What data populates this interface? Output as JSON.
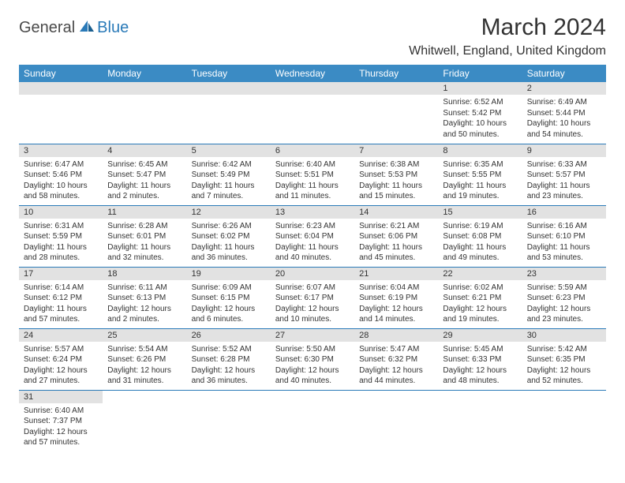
{
  "logo": {
    "dark": "General",
    "blue": "Blue"
  },
  "title": "March 2024",
  "location": "Whitwell, England, United Kingdom",
  "colors": {
    "header_bg": "#3b8bc4",
    "accent": "#2a7ab8",
    "daynum_bg": "#e2e2e2",
    "text": "#333333"
  },
  "day_headers": [
    "Sunday",
    "Monday",
    "Tuesday",
    "Wednesday",
    "Thursday",
    "Friday",
    "Saturday"
  ],
  "weeks": [
    [
      null,
      null,
      null,
      null,
      null,
      {
        "n": "1",
        "sr": "6:52 AM",
        "ss": "5:42 PM",
        "dl": "10 hours and 50 minutes."
      },
      {
        "n": "2",
        "sr": "6:49 AM",
        "ss": "5:44 PM",
        "dl": "10 hours and 54 minutes."
      }
    ],
    [
      {
        "n": "3",
        "sr": "6:47 AM",
        "ss": "5:46 PM",
        "dl": "10 hours and 58 minutes."
      },
      {
        "n": "4",
        "sr": "6:45 AM",
        "ss": "5:47 PM",
        "dl": "11 hours and 2 minutes."
      },
      {
        "n": "5",
        "sr": "6:42 AM",
        "ss": "5:49 PM",
        "dl": "11 hours and 7 minutes."
      },
      {
        "n": "6",
        "sr": "6:40 AM",
        "ss": "5:51 PM",
        "dl": "11 hours and 11 minutes."
      },
      {
        "n": "7",
        "sr": "6:38 AM",
        "ss": "5:53 PM",
        "dl": "11 hours and 15 minutes."
      },
      {
        "n": "8",
        "sr": "6:35 AM",
        "ss": "5:55 PM",
        "dl": "11 hours and 19 minutes."
      },
      {
        "n": "9",
        "sr": "6:33 AM",
        "ss": "5:57 PM",
        "dl": "11 hours and 23 minutes."
      }
    ],
    [
      {
        "n": "10",
        "sr": "6:31 AM",
        "ss": "5:59 PM",
        "dl": "11 hours and 28 minutes."
      },
      {
        "n": "11",
        "sr": "6:28 AM",
        "ss": "6:01 PM",
        "dl": "11 hours and 32 minutes."
      },
      {
        "n": "12",
        "sr": "6:26 AM",
        "ss": "6:02 PM",
        "dl": "11 hours and 36 minutes."
      },
      {
        "n": "13",
        "sr": "6:23 AM",
        "ss": "6:04 PM",
        "dl": "11 hours and 40 minutes."
      },
      {
        "n": "14",
        "sr": "6:21 AM",
        "ss": "6:06 PM",
        "dl": "11 hours and 45 minutes."
      },
      {
        "n": "15",
        "sr": "6:19 AM",
        "ss": "6:08 PM",
        "dl": "11 hours and 49 minutes."
      },
      {
        "n": "16",
        "sr": "6:16 AM",
        "ss": "6:10 PM",
        "dl": "11 hours and 53 minutes."
      }
    ],
    [
      {
        "n": "17",
        "sr": "6:14 AM",
        "ss": "6:12 PM",
        "dl": "11 hours and 57 minutes."
      },
      {
        "n": "18",
        "sr": "6:11 AM",
        "ss": "6:13 PM",
        "dl": "12 hours and 2 minutes."
      },
      {
        "n": "19",
        "sr": "6:09 AM",
        "ss": "6:15 PM",
        "dl": "12 hours and 6 minutes."
      },
      {
        "n": "20",
        "sr": "6:07 AM",
        "ss": "6:17 PM",
        "dl": "12 hours and 10 minutes."
      },
      {
        "n": "21",
        "sr": "6:04 AM",
        "ss": "6:19 PM",
        "dl": "12 hours and 14 minutes."
      },
      {
        "n": "22",
        "sr": "6:02 AM",
        "ss": "6:21 PM",
        "dl": "12 hours and 19 minutes."
      },
      {
        "n": "23",
        "sr": "5:59 AM",
        "ss": "6:23 PM",
        "dl": "12 hours and 23 minutes."
      }
    ],
    [
      {
        "n": "24",
        "sr": "5:57 AM",
        "ss": "6:24 PM",
        "dl": "12 hours and 27 minutes."
      },
      {
        "n": "25",
        "sr": "5:54 AM",
        "ss": "6:26 PM",
        "dl": "12 hours and 31 minutes."
      },
      {
        "n": "26",
        "sr": "5:52 AM",
        "ss": "6:28 PM",
        "dl": "12 hours and 36 minutes."
      },
      {
        "n": "27",
        "sr": "5:50 AM",
        "ss": "6:30 PM",
        "dl": "12 hours and 40 minutes."
      },
      {
        "n": "28",
        "sr": "5:47 AM",
        "ss": "6:32 PM",
        "dl": "12 hours and 44 minutes."
      },
      {
        "n": "29",
        "sr": "5:45 AM",
        "ss": "6:33 PM",
        "dl": "12 hours and 48 minutes."
      },
      {
        "n": "30",
        "sr": "5:42 AM",
        "ss": "6:35 PM",
        "dl": "12 hours and 52 minutes."
      }
    ],
    [
      {
        "n": "31",
        "sr": "6:40 AM",
        "ss": "7:37 PM",
        "dl": "12 hours and 57 minutes."
      },
      null,
      null,
      null,
      null,
      null,
      null
    ]
  ],
  "labels": {
    "sunrise": "Sunrise:",
    "sunset": "Sunset:",
    "daylight": "Daylight:"
  }
}
